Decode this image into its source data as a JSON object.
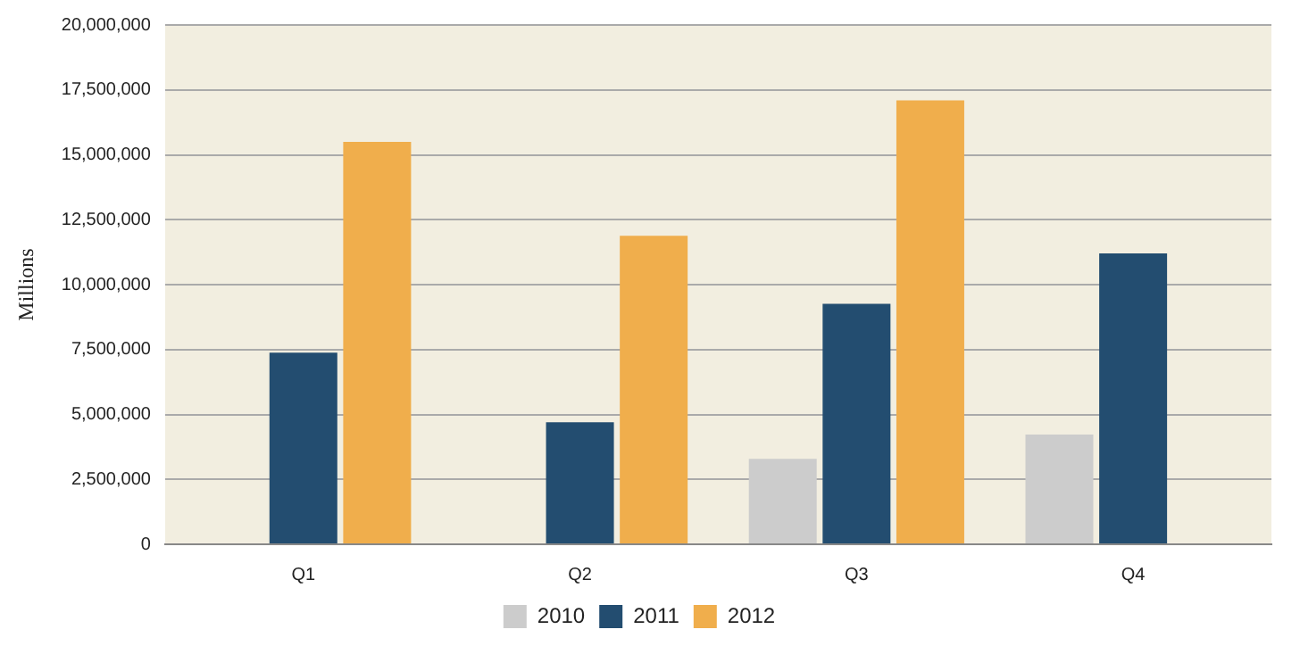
{
  "chart_data": {
    "type": "bar",
    "ylabel": "Millions",
    "categories": [
      "Q1",
      "Q2",
      "Q3",
      "Q4"
    ],
    "series": [
      {
        "name": "2010",
        "color": "#cccccc",
        "values": [
          null,
          null,
          3290000,
          4230000
        ]
      },
      {
        "name": "2011",
        "color": "#234d70",
        "values": [
          7380000,
          4700000,
          9260000,
          11200000
        ]
      },
      {
        "name": "2012",
        "color": "#f0ae4c",
        "values": [
          15500000,
          11880000,
          17100000,
          null
        ]
      }
    ],
    "ylim": [
      0,
      20000000
    ],
    "yticks": [
      0,
      {
        "value": 2500000,
        "label": "2,500,000"
      },
      {
        "value": 5000000,
        "label": "5,000,000"
      },
      {
        "value": 7500000,
        "label": "7,500,000"
      },
      {
        "value": 10000000,
        "label": "10,000,000"
      },
      {
        "value": 12500000,
        "label": "12,500,000"
      },
      {
        "value": 15000000,
        "label": "15,000,000"
      },
      {
        "value": 17500000,
        "label": "17,500,000"
      },
      {
        "value": 20000000,
        "label": "20,000,000"
      }
    ],
    "grid": "y",
    "legend": "bottom"
  }
}
